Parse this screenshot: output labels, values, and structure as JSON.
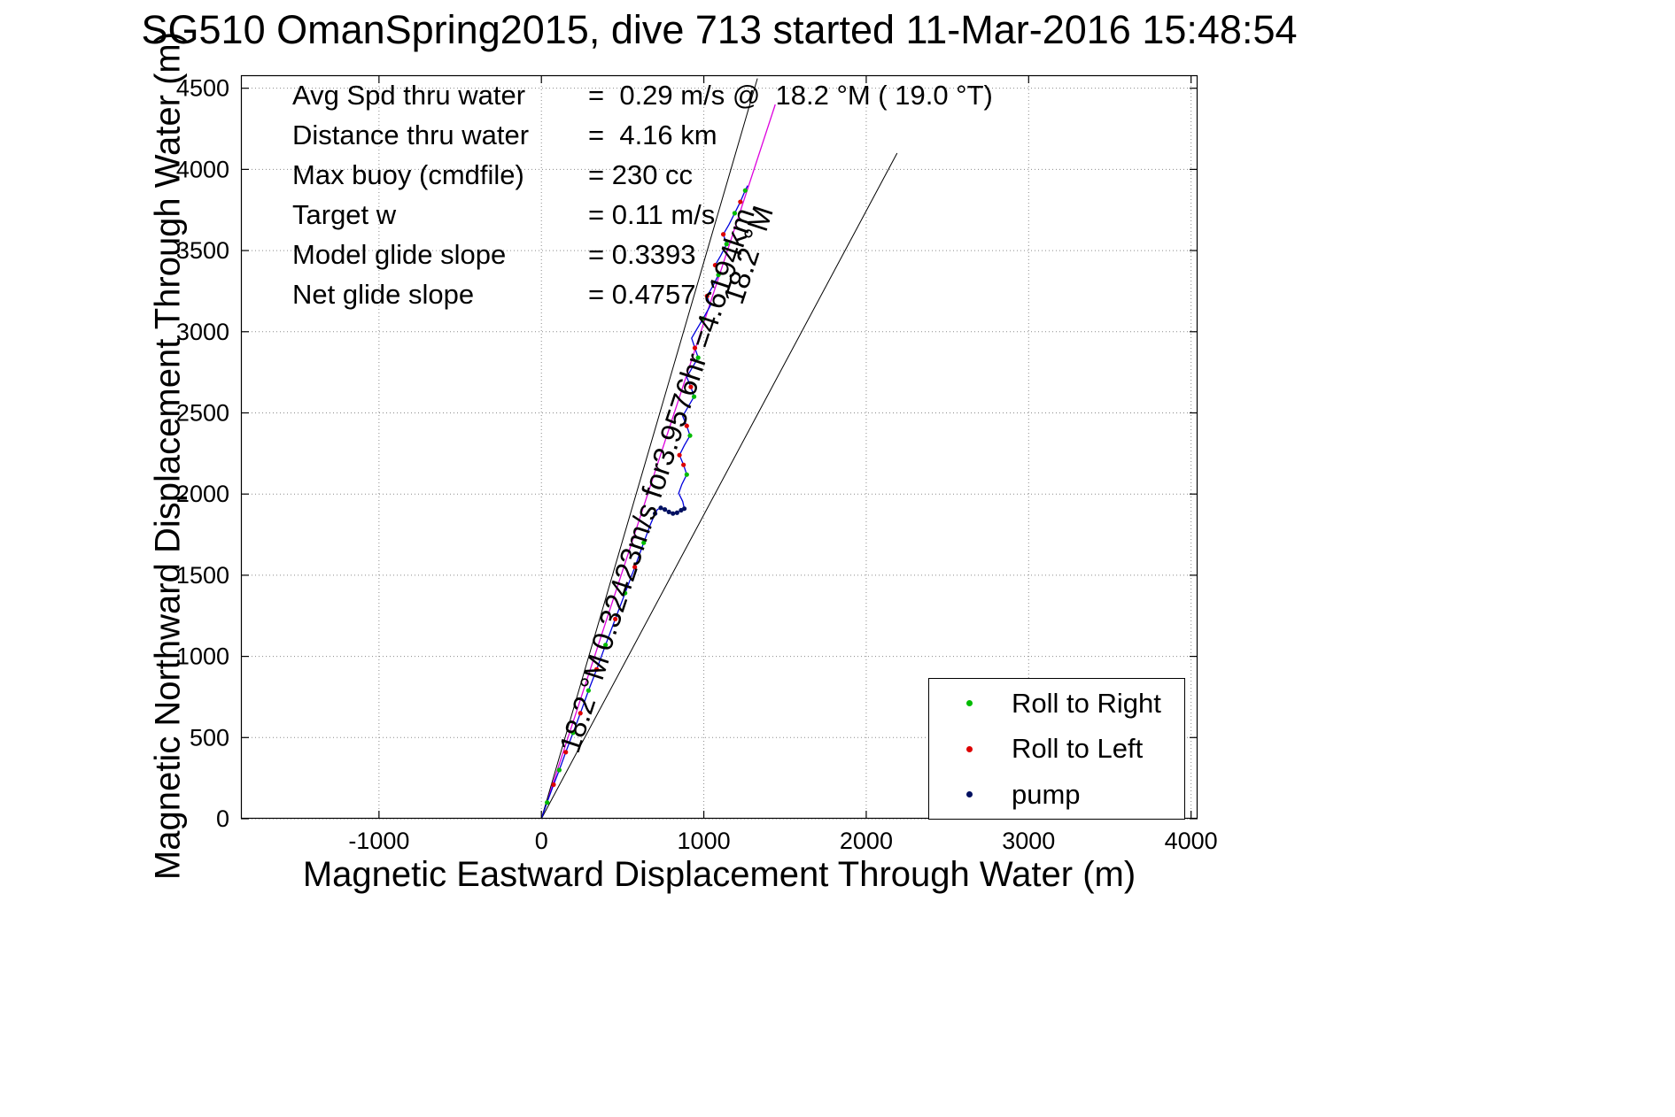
{
  "title": "SG510 OmanSpring2015, dive 713 started 11-Mar-2016 15:48:54",
  "stats": {
    "rows": [
      {
        "label": "Avg Spd thru water",
        "value": "=  0.29 m/s @  18.2 °M ( 19.0 °T)"
      },
      {
        "label": "Distance thru water",
        "value": "=  4.16 km"
      },
      {
        "label": "Max buoy (cmdfile)",
        "value": "= 230 cc"
      },
      {
        "label": "Target w",
        "value": "= 0.11 m/s"
      },
      {
        "label": "Model glide slope",
        "value": "= 0.3393"
      },
      {
        "label": "Net glide slope",
        "value": "= 0.4757"
      }
    ]
  },
  "annotations": {
    "speed_line_label": "0.32423m/s for3.9576hr =4.6194km",
    "bearing_label_lower": "18.2 °M",
    "bearing_label_upper": "18.2 °M"
  },
  "chart_data": {
    "type": "line",
    "title": "SG510 OmanSpring2015, dive 713 started 11-Mar-2016 15:48:54",
    "xlabel": "Magnetic Eastward Displacement Through Water (m)",
    "ylabel": "Magnetic Northward Displacement Through Water (m)",
    "xlim": [
      -1850,
      4040
    ],
    "ylim": [
      0,
      4580
    ],
    "xticks": [
      -1000,
      0,
      1000,
      2000,
      3000,
      4000
    ],
    "yticks": [
      0,
      500,
      1000,
      1500,
      2000,
      2500,
      3000,
      3500,
      4000,
      4500
    ],
    "grid": "dotted",
    "colors": {
      "track": "#0000dd",
      "course": "#dd00dd",
      "fan": "#000000",
      "roll_right": "#00bb00",
      "roll_left": "#dd0000",
      "pump": "#001060"
    },
    "reference_lines": [
      {
        "name": "course-line",
        "color": "#dd00dd",
        "width": 1.3,
        "points": [
          [
            0,
            0
          ],
          [
            1440,
            4400
          ]
        ]
      },
      {
        "name": "fan-line-left",
        "color": "#000000",
        "width": 1,
        "points": [
          [
            0,
            0
          ],
          [
            1330,
            4560
          ]
        ]
      },
      {
        "name": "fan-line-right",
        "color": "#000000",
        "width": 1,
        "points": [
          [
            0,
            0
          ],
          [
            2190,
            4100
          ]
        ]
      }
    ],
    "track": [
      [
        0,
        0
      ],
      [
        35,
        100
      ],
      [
        75,
        210
      ],
      [
        110,
        300
      ],
      [
        150,
        410
      ],
      [
        195,
        530
      ],
      [
        240,
        650
      ],
      [
        290,
        790
      ],
      [
        340,
        920
      ],
      [
        395,
        1070
      ],
      [
        455,
        1230
      ],
      [
        515,
        1390
      ],
      [
        575,
        1550
      ],
      [
        630,
        1700
      ],
      [
        670,
        1810
      ],
      [
        700,
        1880
      ],
      [
        715,
        1905
      ],
      [
        735,
        1915
      ],
      [
        760,
        1905
      ],
      [
        785,
        1890
      ],
      [
        810,
        1880
      ],
      [
        835,
        1885
      ],
      [
        860,
        1900
      ],
      [
        880,
        1910
      ],
      [
        870,
        1955
      ],
      [
        845,
        2005
      ],
      [
        865,
        2060
      ],
      [
        895,
        2120
      ],
      [
        875,
        2180
      ],
      [
        850,
        2240
      ],
      [
        880,
        2300
      ],
      [
        915,
        2360
      ],
      [
        895,
        2420
      ],
      [
        870,
        2480
      ],
      [
        905,
        2540
      ],
      [
        940,
        2600
      ],
      [
        920,
        2660
      ],
      [
        895,
        2720
      ],
      [
        930,
        2780
      ],
      [
        965,
        2840
      ],
      [
        945,
        2900
      ],
      [
        925,
        2960
      ],
      [
        960,
        3020
      ],
      [
        995,
        3080
      ],
      [
        1040,
        3160
      ],
      [
        1020,
        3220
      ],
      [
        1055,
        3280
      ],
      [
        1090,
        3350
      ],
      [
        1070,
        3410
      ],
      [
        1105,
        3470
      ],
      [
        1140,
        3540
      ],
      [
        1120,
        3600
      ],
      [
        1155,
        3660
      ],
      [
        1190,
        3730
      ],
      [
        1225,
        3800
      ],
      [
        1255,
        3870
      ],
      [
        1270,
        3900
      ]
    ],
    "roll_right": [
      [
        35,
        100
      ],
      [
        110,
        300
      ],
      [
        195,
        530
      ],
      [
        290,
        790
      ],
      [
        395,
        1070
      ],
      [
        515,
        1390
      ],
      [
        630,
        1700
      ],
      [
        895,
        2120
      ],
      [
        915,
        2360
      ],
      [
        940,
        2600
      ],
      [
        965,
        2840
      ],
      [
        995,
        3080
      ],
      [
        1090,
        3350
      ],
      [
        1140,
        3540
      ],
      [
        1190,
        3730
      ],
      [
        1255,
        3870
      ]
    ],
    "roll_left": [
      [
        75,
        210
      ],
      [
        150,
        410
      ],
      [
        240,
        650
      ],
      [
        340,
        920
      ],
      [
        455,
        1230
      ],
      [
        575,
        1550
      ],
      [
        875,
        2180
      ],
      [
        850,
        2240
      ],
      [
        895,
        2420
      ],
      [
        920,
        2660
      ],
      [
        945,
        2900
      ],
      [
        1020,
        3220
      ],
      [
        1070,
        3410
      ],
      [
        1120,
        3600
      ],
      [
        1225,
        3800
      ]
    ],
    "pump": [
      [
        700,
        1880
      ],
      [
        735,
        1915
      ],
      [
        760,
        1905
      ],
      [
        785,
        1890
      ],
      [
        810,
        1880
      ],
      [
        835,
        1885
      ],
      [
        860,
        1900
      ],
      [
        880,
        1910
      ]
    ],
    "legend": {
      "position": "lower right",
      "items": [
        {
          "label": "Roll to Right",
          "color": "#00bb00"
        },
        {
          "label": "Roll to Left",
          "color": "#dd0000"
        },
        {
          "label": "pump",
          "color": "#001060"
        }
      ]
    }
  }
}
